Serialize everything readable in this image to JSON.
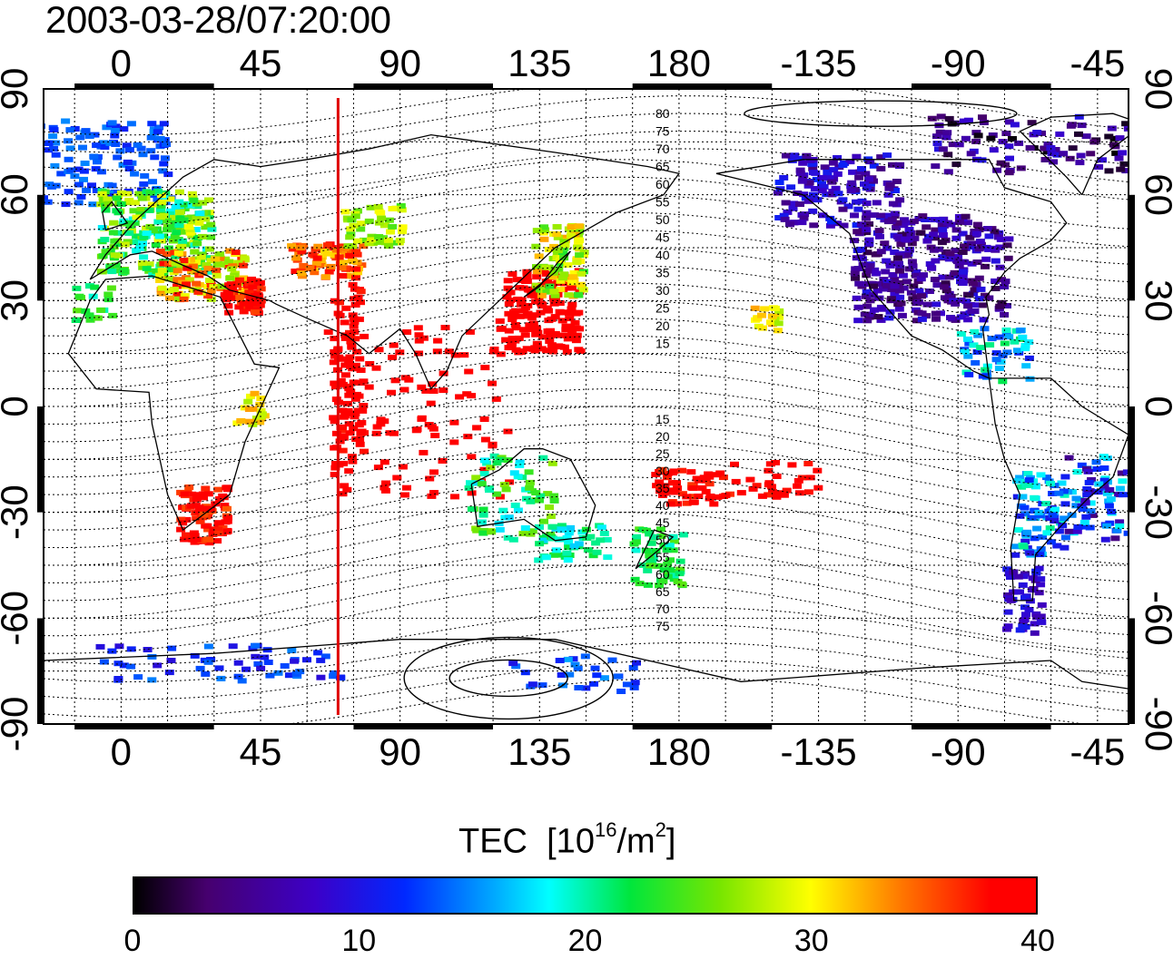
{
  "timestamp": "2003-03-28/07:20:00",
  "map": {
    "lon_labels": [
      "0",
      "45",
      "90",
      "135",
      "180",
      "-135",
      "-90",
      "-45"
    ],
    "lat_labels": [
      "90",
      "60",
      "30",
      "0",
      "-30",
      "-60",
      "-90"
    ],
    "marker_meridian_lon": 70,
    "lon_range": [
      -25,
      325
    ],
    "lat_range": [
      -90,
      90
    ],
    "contour_labels_north": [
      "80",
      "75",
      "70",
      "65",
      "60",
      "55",
      "50",
      "45",
      "40",
      "35",
      "30",
      "25",
      "20",
      "15"
    ],
    "contour_labels_south": [
      "15",
      "20",
      "25",
      "30",
      "35",
      "40",
      "45",
      "50",
      "55",
      "60",
      "65",
      "70",
      "75"
    ]
  },
  "colorbar": {
    "title": "TEC",
    "unit_base": "[10",
    "unit_exp": "16",
    "unit_mid": "/m",
    "unit_exp2": "2",
    "unit_end": "]",
    "ticks": [
      "0",
      "10",
      "20",
      "30",
      "40"
    ],
    "range": [
      0,
      40
    ]
  },
  "colors": {
    "marker_line": "#e00000",
    "grid": "#000000"
  }
}
